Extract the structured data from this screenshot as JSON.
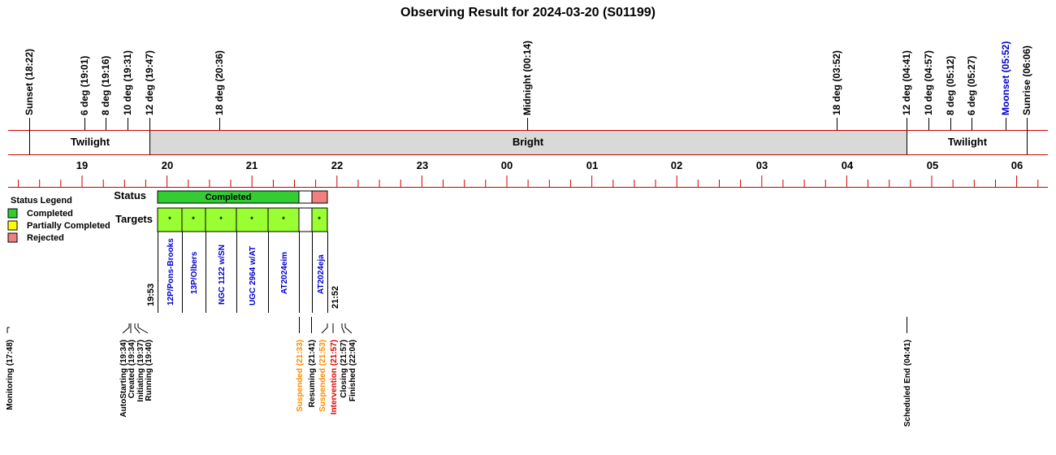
{
  "title": "Observing Result for 2024-03-20 (S01199)",
  "sky_events": [
    {
      "label": "Sunset (18:22)",
      "color": "black"
    },
    {
      "label": "6 deg (19:01)",
      "color": "black"
    },
    {
      "label": "8 deg (19:16)",
      "color": "black"
    },
    {
      "label": "10 deg (19:31)",
      "color": "black"
    },
    {
      "label": "12 deg (19:47)",
      "color": "black"
    },
    {
      "label": "18 deg (20:36)",
      "color": "black"
    },
    {
      "label": "Midnight (00:14)",
      "color": "black"
    },
    {
      "label": "18 deg (03:52)",
      "color": "black"
    },
    {
      "label": "12 deg (04:41)",
      "color": "black"
    },
    {
      "label": "10 deg (04:57)",
      "color": "black"
    },
    {
      "label": "8 deg (05:12)",
      "color": "black"
    },
    {
      "label": "6 deg (05:27)",
      "color": "black"
    },
    {
      "label": "Moonset (05:52)",
      "color": "blue"
    },
    {
      "label": "Sunrise (06:06)",
      "color": "black"
    }
  ],
  "bands": [
    {
      "label": "Twilight",
      "shade": "white"
    },
    {
      "label": "Bright",
      "shade": "gray"
    },
    {
      "label": "Twilight",
      "shade": "white"
    }
  ],
  "hours": [
    "19",
    "20",
    "21",
    "22",
    "23",
    "00",
    "01",
    "02",
    "03",
    "04",
    "05",
    "06"
  ],
  "legend": {
    "title": "Status Legend",
    "items": [
      {
        "label": "Completed",
        "color": "#33cc33"
      },
      {
        "label": "Partially Completed",
        "color": "#ffff00"
      },
      {
        "label": "Rejected",
        "color": "#f08080"
      }
    ]
  },
  "row_labels": {
    "status": "Status",
    "targets": "Targets"
  },
  "status_blocks": [
    {
      "label": "Completed",
      "color": "#33cc33"
    },
    {
      "label": "",
      "color": "#ffffff"
    },
    {
      "label": "",
      "color": "#f08080"
    }
  ],
  "targets": [
    {
      "name": "12P/Pons-Brooks",
      "marker": "*"
    },
    {
      "name": "13P/Olbers",
      "marker": "*"
    },
    {
      "name": "NGC 1122 w/SN",
      "marker": "*"
    },
    {
      "name": "UGC 2964 w/AT",
      "marker": "*"
    },
    {
      "name": "AT2024eim",
      "marker": "*"
    },
    {
      "name": "",
      "marker": ""
    },
    {
      "name": "AT2024eja",
      "marker": "*"
    }
  ],
  "target_color": "#99ff33",
  "start_time": "19:53",
  "end_time": "21:52",
  "log_events": [
    {
      "label": "Monitoring (17:48)",
      "color": "black"
    },
    {
      "label": "AutoStarting (19:34)",
      "color": "black"
    },
    {
      "label": "Created (19:34)",
      "color": "black"
    },
    {
      "label": "Initiating (19:37)",
      "color": "black"
    },
    {
      "label": "Running (19:40)",
      "color": "black"
    },
    {
      "label": "Suspended (21:33)",
      "color": "orange"
    },
    {
      "label": "Resuming (21:41)",
      "color": "black"
    },
    {
      "label": "Suspended (21:53)",
      "color": "orange"
    },
    {
      "label": "Intervention (21:57)",
      "color": "red"
    },
    {
      "label": "Closing (21:57)",
      "color": "black"
    },
    {
      "label": "Finished (22:04)",
      "color": "black"
    },
    {
      "label": "Scheduled End (04:41)",
      "color": "black"
    }
  ]
}
